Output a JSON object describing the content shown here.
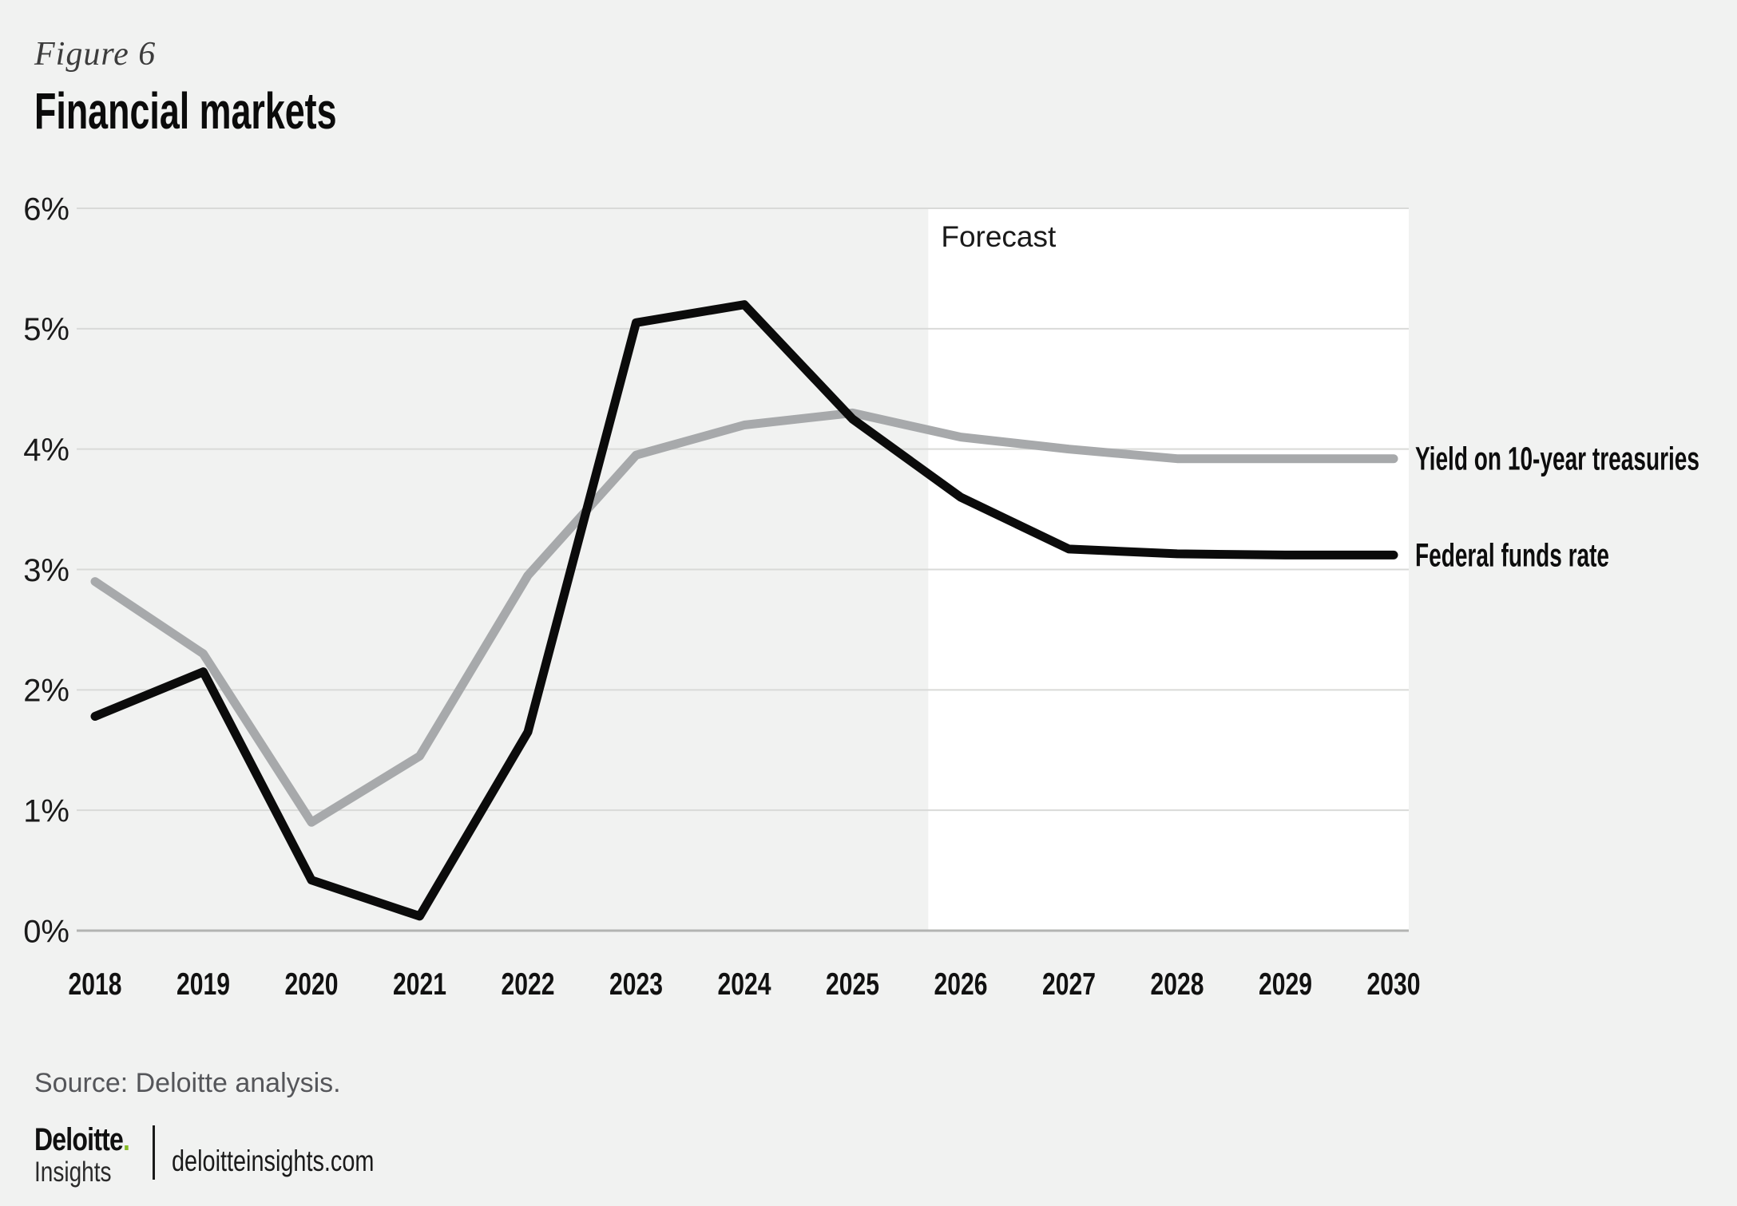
{
  "page": {
    "figure_label": "Figure 6",
    "title": "Financial markets"
  },
  "chart_data": {
    "type": "line",
    "x": [
      2018,
      2019,
      2020,
      2021,
      2022,
      2023,
      2024,
      2025,
      2026,
      2027,
      2028,
      2029,
      2030
    ],
    "series": [
      {
        "name": "Yield on 10-year treasuries",
        "color": "#a7a9ab",
        "values": [
          2.9,
          2.3,
          0.9,
          1.45,
          2.95,
          3.95,
          4.2,
          4.3,
          4.1,
          4.0,
          3.92,
          3.92,
          3.92
        ]
      },
      {
        "name": "Federal funds rate",
        "color": "#0b0b0b",
        "values": [
          1.78,
          2.15,
          0.42,
          0.12,
          1.65,
          5.05,
          5.2,
          4.25,
          3.6,
          3.17,
          3.13,
          3.12,
          3.12
        ]
      }
    ],
    "ylim": [
      0,
      6
    ],
    "ytick_labels": [
      "0%",
      "1%",
      "2%",
      "3%",
      "4%",
      "5%",
      "6%"
    ],
    "grid": "horizontal",
    "forecast": {
      "label": "Forecast",
      "start_x": 2025.7
    },
    "legend_position": "right-of-line-ends"
  },
  "footer": {
    "source": "Source: Deloitte analysis.",
    "logo_brand": "Deloitte",
    "logo_dot": ".",
    "logo_sub": "Insights",
    "site": "deloitteinsights.com"
  },
  "colors": {
    "background": "#f1f2f1",
    "forecast_bg": "#ffffff",
    "gridline": "#d9dad8",
    "axis_line": "#b3b4b2",
    "tick_text": "#1a1a1a",
    "brand_green": "#86bc25"
  }
}
